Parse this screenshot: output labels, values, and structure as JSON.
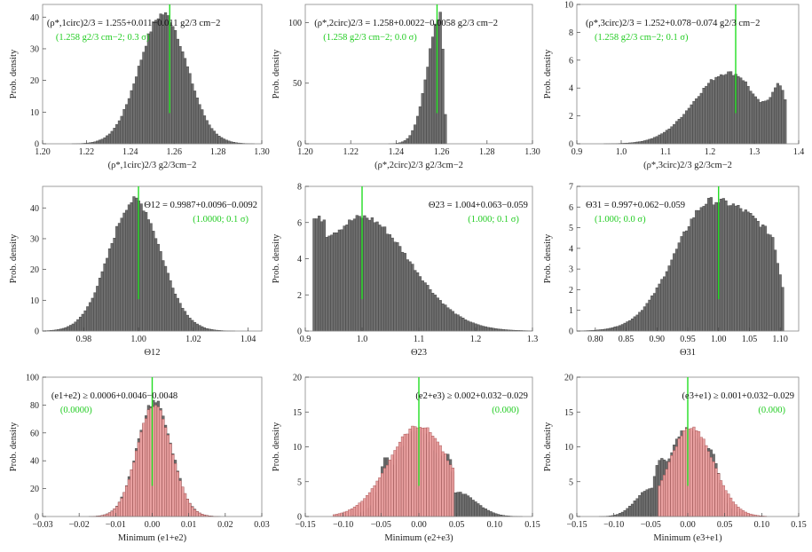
{
  "colors": {
    "bar_gray": "#6e6e6e",
    "bar_gray_outline": "#3a3a3a",
    "bar_red": "#e8a0a0",
    "bar_red_outline": "#a04848",
    "true_line": "#22dd22",
    "annotation_green": "#22cc22",
    "frame": "#888888"
  },
  "chart_data": [
    {
      "type": "bar",
      "shape": "normal",
      "mu": 1.255,
      "sigma": 0.0108,
      "peak": 41,
      "xlim": [
        1.2,
        1.3
      ],
      "ylim": [
        0,
        44
      ],
      "xticks": [
        "1.20",
        "1.22",
        "1.24",
        "1.26",
        "1.28",
        "1.30"
      ],
      "yticks": [
        "0",
        "10",
        "20",
        "30",
        "40"
      ],
      "xlabel": "(ρ*,1circ)2/3 g2/3cm−2",
      "ylabel": "Prob. density",
      "true_value": 1.258,
      "ann_pos": "top-left",
      "annotation": "(ρ*,1circ)2/3 = 1.255+0.011−0.011 g2/3 cm−2",
      "annotation_truth": "(1.258 g2/3 cm−2; 0.3 σ)"
    },
    {
      "type": "bar",
      "shape": "skew-left",
      "mode": 1.2596,
      "left_scale": 0.0058,
      "right_scale": 0.0012,
      "cut": 1.2625,
      "peak": 106,
      "xlim": [
        1.2,
        1.3
      ],
      "ylim": [
        0,
        115
      ],
      "xticks": [
        "1.20",
        "1.22",
        "1.24",
        "1.26",
        "1.28",
        "1.30"
      ],
      "yticks": [
        "0",
        "50",
        "100"
      ],
      "xlabel": "(ρ*,2circ)2/3 g2/3cm−2",
      "ylabel": "Prob. density",
      "true_value": 1.258,
      "ann_pos": "top-left",
      "annotation": "(ρ*,2circ)2/3 = 1.258+0.0022−0.0058 g2/3 cm−2",
      "annotation_truth": "(1.258 g2/3 cm−2; 0.0 σ)"
    },
    {
      "type": "bar",
      "shape": "custom3",
      "xlim": [
        0.9,
        1.4
      ],
      "ylim": [
        0,
        10
      ],
      "xticks": [
        "0.9",
        "1.0",
        "1.1",
        "1.2",
        "1.3",
        "1.4"
      ],
      "yticks": [
        "0",
        "2",
        "4",
        "6",
        "8",
        "10"
      ],
      "xlabel": "(ρ*,3circ)2/3 g2/3cm−2",
      "ylabel": "Prob. density",
      "true_value": 1.258,
      "ann_pos": "top-left",
      "annotation": "(ρ*,3circ)2/3 = 1.252+0.078−0.074 g2/3 cm−2",
      "annotation_truth": "(1.258 g2/3 cm−2; 0.1 σ)"
    },
    {
      "type": "bar",
      "shape": "normal",
      "mu": 0.9987,
      "sigma": 0.0094,
      "peak": 42.5,
      "xlim": [
        0.965,
        1.045
      ],
      "ylim": [
        0,
        47
      ],
      "xticks": [
        "0.98",
        "1.00",
        "1.02",
        "1.04"
      ],
      "yticks": [
        "0",
        "10",
        "20",
        "30",
        "40"
      ],
      "xlabel": "Θ12",
      "ylabel": "Prob. density",
      "true_value": 1.0,
      "ann_pos": "top-right",
      "annotation": "Θ12 = 0.9987+0.0096−0.0092",
      "annotation_truth": "(1.0000; 0.1 σ)"
    },
    {
      "type": "bar",
      "shape": "custom23",
      "xlim": [
        0.9,
        1.3
      ],
      "ylim": [
        0,
        8
      ],
      "xticks": [
        "0.9",
        "1.0",
        "1.1",
        "1.2",
        "1.3"
      ],
      "yticks": [
        "0",
        "2",
        "4",
        "6",
        "8"
      ],
      "xlabel": "Θ23",
      "ylabel": "Prob. density",
      "true_value": 1.0,
      "ann_pos": "top-right",
      "annotation": "Θ23 = 1.004+0.063−0.059",
      "annotation_truth": "(1.000; 0.1 σ)"
    },
    {
      "type": "bar",
      "shape": "custom31",
      "xlim": [
        0.77,
        1.13
      ],
      "ylim": [
        0,
        7
      ],
      "xticks": [
        "0.80",
        "0.85",
        "0.90",
        "0.95",
        "1.00",
        "1.05",
        "1.10"
      ],
      "yticks": [
        "0",
        "1",
        "2",
        "3",
        "4",
        "5",
        "6",
        "7"
      ],
      "xlabel": "Θ31",
      "ylabel": "Prob. density",
      "true_value": 1.0,
      "ann_pos": "top-left",
      "annotation": "Θ31 = 0.997+0.062−0.059",
      "annotation_truth": "(1.000; 0.0 σ)"
    },
    {
      "type": "bar",
      "shape": "normal-red",
      "mu": 0.0006,
      "sigma": 0.0047,
      "peak": 83,
      "xlim": [
        -0.03,
        0.03
      ],
      "ylim": [
        0,
        100
      ],
      "xticks": [
        "−0.03",
        "−0.02",
        "−0.01",
        "0.00",
        "0.01",
        "0.02",
        "0.03"
      ],
      "yticks": [
        "0",
        "20",
        "40",
        "60",
        "80",
        "100"
      ],
      "xlabel": "Minimum (e1+e2)",
      "ylabel": "Prob. density",
      "true_value": 0.0,
      "ann_pos": "top-left",
      "annotation": "(e1+e2) ≥ 0.0006+0.0046−0.0048",
      "annotation_truth": "(0.0000)"
    },
    {
      "type": "bar",
      "shape": "custom-e23",
      "xlim": [
        -0.15,
        0.15
      ],
      "ylim": [
        0,
        20
      ],
      "xticks": [
        "−0.15",
        "−0.10",
        "−0.05",
        "0.00",
        "0.05",
        "0.10",
        "0.15"
      ],
      "yticks": [
        "0",
        "5",
        "10",
        "15",
        "20"
      ],
      "xlabel": "Minimum (e2+e3)",
      "ylabel": "Prob. density",
      "true_value": 0.0,
      "ann_pos": "top-right",
      "annotation": "(e2+e3) ≥ 0.002+0.032−0.029",
      "annotation_truth": "(0.000)"
    },
    {
      "type": "bar",
      "shape": "custom-e31",
      "xlim": [
        -0.15,
        0.15
      ],
      "ylim": [
        0,
        20
      ],
      "xticks": [
        "−0.15",
        "−0.10",
        "−0.05",
        "0.00",
        "0.05",
        "0.10",
        "0.15"
      ],
      "yticks": [
        "0",
        "5",
        "10",
        "15",
        "20"
      ],
      "xlabel": "Minimum (e3+e1)",
      "ylabel": "Prob. density",
      "true_value": 0.0,
      "ann_pos": "top-right",
      "annotation": "(e3+e1) ≥ 0.001+0.032−0.029",
      "annotation_truth": "(0.000)"
    }
  ]
}
